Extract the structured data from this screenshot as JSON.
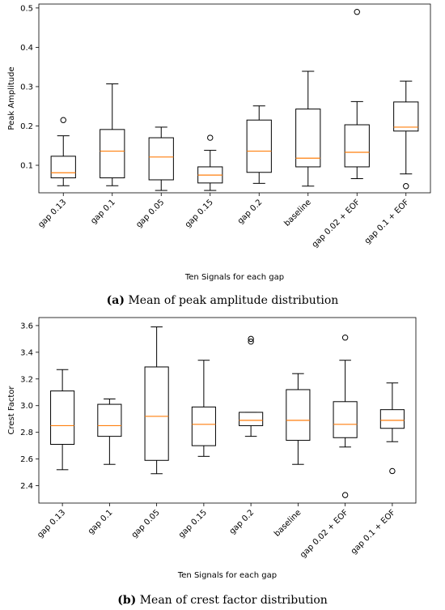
{
  "chart_data": [
    {
      "type": "boxplot",
      "ylabel": "Peak Amplitude",
      "xlabel": "Ten Signals for each gap",
      "ylim": [
        0.03,
        0.51
      ],
      "yticks": [
        0.1,
        0.2,
        0.3,
        0.4,
        0.5
      ],
      "ytick_labels": [
        "0.1",
        "0.2",
        "0.3",
        "0.4",
        "0.5"
      ],
      "categories": [
        "gap 0.13",
        "gap 0.1",
        "gap 0.05",
        "gap 0.15",
        "gap 0.2",
        "baseline",
        "gap 0.02 + EOF",
        "gap 0.1 + EOF"
      ],
      "boxes": [
        {
          "whislo": 0.048,
          "q1": 0.068,
          "med": 0.081,
          "q3": 0.123,
          "whishi": 0.175,
          "fliers": [
            0.215
          ]
        },
        {
          "whislo": 0.048,
          "q1": 0.068,
          "med": 0.136,
          "q3": 0.191,
          "whishi": 0.307,
          "fliers": []
        },
        {
          "whislo": 0.036,
          "q1": 0.063,
          "med": 0.121,
          "q3": 0.17,
          "whishi": 0.197,
          "fliers": []
        },
        {
          "whislo": 0.036,
          "q1": 0.055,
          "med": 0.075,
          "q3": 0.096,
          "whishi": 0.138,
          "fliers": [
            0.17
          ]
        },
        {
          "whislo": 0.054,
          "q1": 0.082,
          "med": 0.136,
          "q3": 0.215,
          "whishi": 0.251,
          "fliers": []
        },
        {
          "whislo": 0.047,
          "q1": 0.096,
          "med": 0.118,
          "q3": 0.243,
          "whishi": 0.339,
          "fliers": []
        },
        {
          "whislo": 0.066,
          "q1": 0.096,
          "med": 0.133,
          "q3": 0.203,
          "whishi": 0.262,
          "fliers": [
            0.49
          ]
        },
        {
          "whislo": 0.078,
          "q1": 0.187,
          "med": 0.197,
          "q3": 0.261,
          "whishi": 0.314,
          "fliers": [
            0.047
          ]
        }
      ],
      "caption_tag": "(a)",
      "caption": "Mean of peak amplitude distribution"
    },
    {
      "type": "boxplot",
      "ylabel": "Crest Factor",
      "xlabel": "Ten Signals for each gap",
      "ylim": [
        2.27,
        3.66
      ],
      "yticks": [
        2.4,
        2.6,
        2.8,
        3.0,
        3.2,
        3.4,
        3.6
      ],
      "ytick_labels": [
        "2.4",
        "2.6",
        "2.8",
        "3.0",
        "3.2",
        "3.4",
        "3.6"
      ],
      "categories": [
        "gap 0.13",
        "gap 0.1",
        "gap 0.05",
        "gap 0.15",
        "gap 0.2",
        "baseline",
        "gap 0.02 + EOF",
        "gap 0.1 + EOF"
      ],
      "boxes": [
        {
          "whislo": 2.52,
          "q1": 2.71,
          "med": 2.85,
          "q3": 3.11,
          "whishi": 3.27,
          "fliers": []
        },
        {
          "whislo": 2.56,
          "q1": 2.77,
          "med": 2.85,
          "q3": 3.01,
          "whishi": 3.05,
          "fliers": []
        },
        {
          "whislo": 2.49,
          "q1": 2.59,
          "med": 2.92,
          "q3": 3.29,
          "whishi": 3.59,
          "fliers": []
        },
        {
          "whislo": 2.62,
          "q1": 2.7,
          "med": 2.86,
          "q3": 2.99,
          "whishi": 3.34,
          "fliers": []
        },
        {
          "whislo": 2.77,
          "q1": 2.85,
          "med": 2.89,
          "q3": 2.95,
          "whishi": 2.95,
          "fliers": [
            3.48,
            3.5
          ]
        },
        {
          "whislo": 2.56,
          "q1": 2.74,
          "med": 2.89,
          "q3": 3.12,
          "whishi": 3.24,
          "fliers": []
        },
        {
          "whislo": 2.69,
          "q1": 2.76,
          "med": 2.86,
          "q3": 3.03,
          "whishi": 3.34,
          "fliers": [
            2.33,
            3.51
          ]
        },
        {
          "whislo": 2.73,
          "q1": 2.83,
          "med": 2.89,
          "q3": 2.97,
          "whishi": 3.17,
          "fliers": [
            2.51
          ]
        }
      ],
      "caption_tag": "(b)",
      "caption": "Mean of crest factor distribution"
    }
  ],
  "colors": {
    "median": "#ff7f0e",
    "box": "#000000"
  }
}
